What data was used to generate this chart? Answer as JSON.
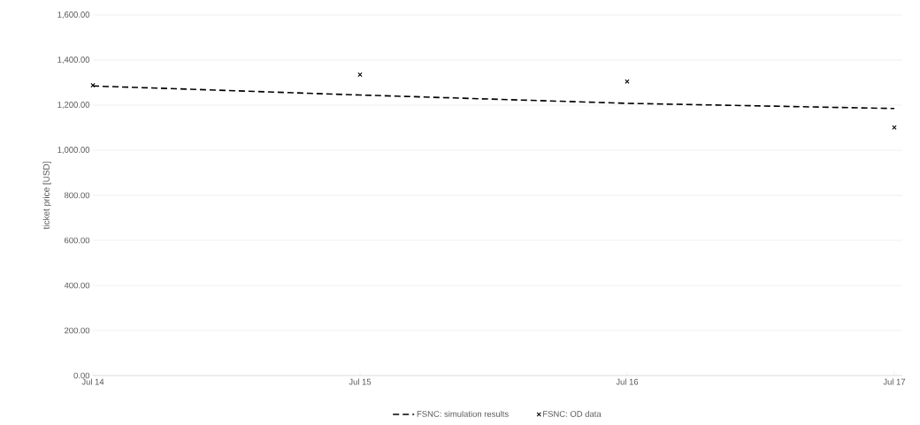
{
  "chart_data": {
    "type": "line",
    "ylabel": "ticket price [USD]",
    "categories": [
      "Jul 14",
      "Jul 15",
      "Jul 16",
      "Jul 17"
    ],
    "ylim": [
      0,
      1600
    ],
    "yticks": [
      {
        "value": 0,
        "label": "0.00"
      },
      {
        "value": 200,
        "label": "200.00"
      },
      {
        "value": 400,
        "label": "400.00"
      },
      {
        "value": 600,
        "label": "600.00"
      },
      {
        "value": 800,
        "label": "800.00"
      },
      {
        "value": 1000,
        "label": "1,000.00"
      },
      {
        "value": 1200,
        "label": "1,200.00"
      },
      {
        "value": 1400,
        "label": "1,400.00"
      },
      {
        "value": 1600,
        "label": "1,600.00"
      }
    ],
    "grid": "y",
    "legend": "bottom",
    "series": [
      {
        "name": "FSNC: simulation results",
        "color": "#000000",
        "line_style": "dashed",
        "marker": "none",
        "values": [
          1285,
          1245,
          1208,
          1185
        ]
      },
      {
        "name": "FSNC: OD data",
        "type": "scatter",
        "color": "#000000",
        "marker": "cross",
        "values": [
          1288,
          1335,
          1305,
          1101
        ]
      }
    ]
  }
}
